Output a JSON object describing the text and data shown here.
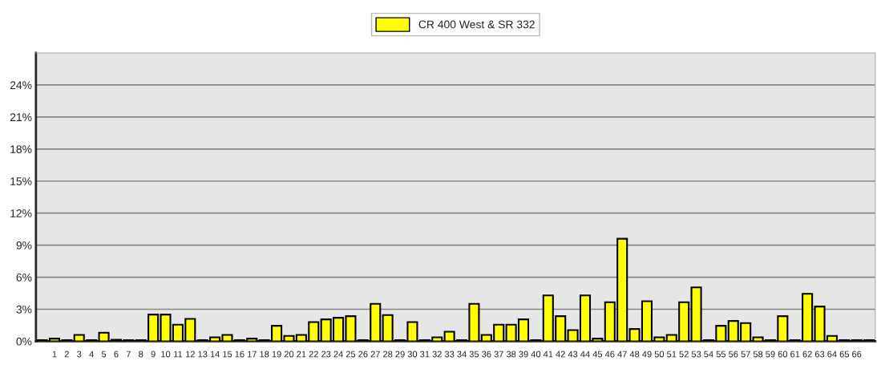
{
  "chart_data": {
    "type": "bar",
    "categories": [
      null,
      "1",
      "2",
      "3",
      "4",
      "5",
      "6",
      "7",
      "8",
      "9",
      "10",
      "11",
      "12",
      "13",
      "14",
      "15",
      "16",
      "17",
      "18",
      "19",
      "20",
      "21",
      "22",
      "23",
      "24",
      "25",
      "26",
      "27",
      "28",
      "29",
      "30",
      "31",
      "32",
      "33",
      "34",
      "35",
      "36",
      "37",
      "38",
      "39",
      "40",
      "41",
      "42",
      "43",
      "44",
      "45",
      "46",
      "47",
      "48",
      "49",
      "50",
      "51",
      "52",
      "53",
      "54",
      "55",
      "56",
      "57",
      "58",
      "59",
      "60",
      "61",
      "62",
      "63",
      "64",
      "65",
      "66",
      null
    ],
    "series": [
      {
        "name": "CR 400 West & SR 332",
        "color": "#ffff00",
        "values": [
          0.1,
          0.25,
          0.1,
          0.6,
          0.1,
          0.8,
          0.15,
          0.1,
          0.1,
          2.5,
          2.5,
          1.55,
          2.1,
          0.1,
          0.37,
          0.6,
          0.1,
          0.25,
          0.1,
          1.45,
          0.5,
          0.6,
          1.8,
          2.05,
          2.2,
          2.35,
          0.1,
          3.5,
          2.45,
          0.1,
          1.8,
          0.1,
          0.37,
          0.9,
          0.1,
          3.5,
          0.6,
          1.55,
          1.55,
          2.05,
          0.1,
          4.3,
          2.35,
          1.05,
          4.3,
          0.25,
          3.65,
          9.6,
          1.15,
          3.75,
          0.37,
          0.6,
          3.65,
          5.05,
          0.1,
          1.45,
          1.9,
          1.7,
          0.37,
          0.1,
          2.35,
          0.1,
          4.45,
          3.25,
          0.5,
          0.1,
          0.1,
          0.1
        ]
      }
    ],
    "ylim": [
      0,
      27
    ],
    "yticks": [
      {
        "value": 0,
        "label": "0%"
      },
      {
        "value": 3,
        "label": "3%"
      },
      {
        "value": 6,
        "label": "6%"
      },
      {
        "value": 9,
        "label": "9%"
      },
      {
        "value": 12,
        "label": "12%"
      },
      {
        "value": 15,
        "label": "15%"
      },
      {
        "value": 18,
        "label": "18%"
      },
      {
        "value": 21,
        "label": "21%"
      },
      {
        "value": 24,
        "label": "24%"
      }
    ],
    "grid": "y",
    "legend": "top"
  }
}
